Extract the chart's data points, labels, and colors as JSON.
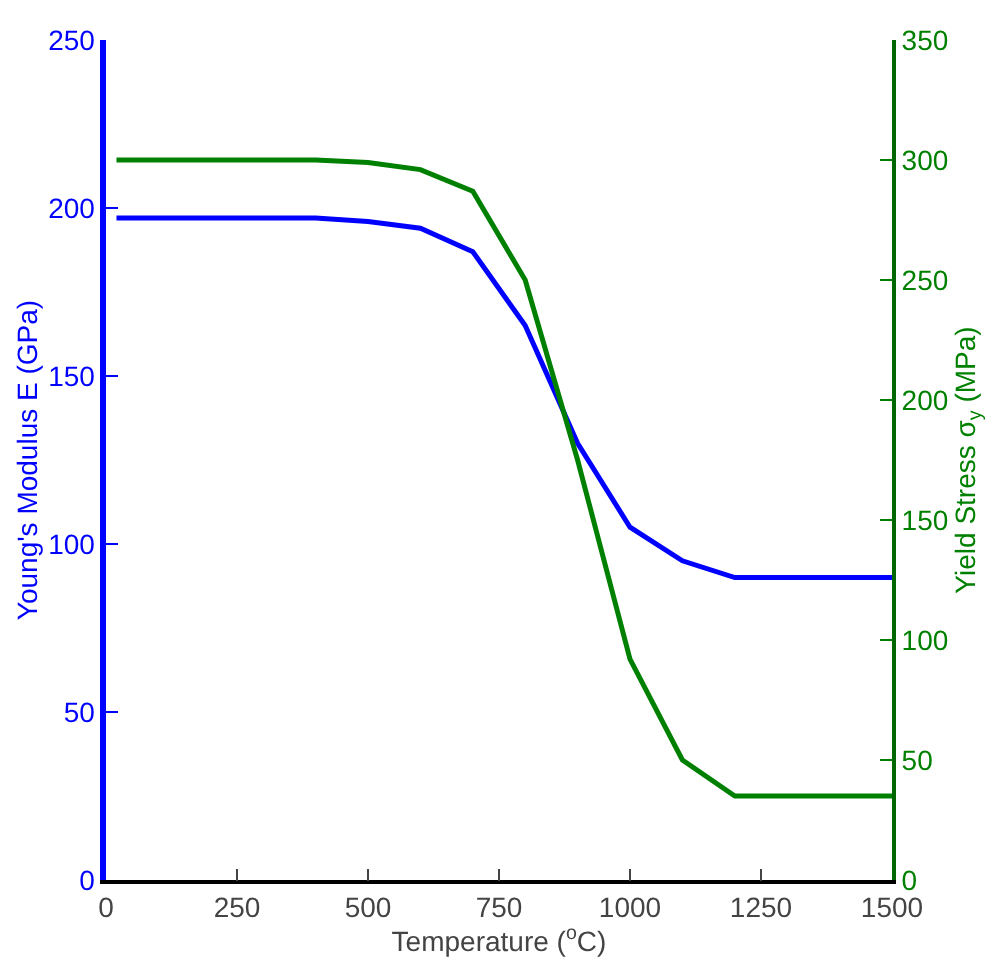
{
  "chart_data": {
    "type": "line",
    "xlabel": "Temperature ($^{o}$C)",
    "ylabel": "Young's Modulus E (GPa)",
    "y2label": "Yield Stress σ$_{y}$ (MPa)",
    "xlim": [
      0,
      1500
    ],
    "xticks": [
      0,
      250,
      500,
      750,
      1000,
      1250,
      1500
    ],
    "ylim": [
      0,
      250
    ],
    "yticks": [
      0,
      50,
      100,
      150,
      200,
      250
    ],
    "y2lim": [
      0,
      350
    ],
    "y2ticks": [
      0,
      50,
      100,
      150,
      200,
      250,
      300,
      350
    ],
    "marker": "none",
    "line_style": "solid",
    "series": [
      {
        "color": "#0000ff",
        "x": [
          20,
          400,
          500,
          600,
          700,
          800,
          900,
          1000,
          1100,
          1200,
          1500
        ],
        "values": [
          197,
          197,
          196,
          194,
          187,
          165,
          130,
          105,
          95,
          90,
          90
        ]
      },
      {
        "color": "#008000",
        "axis": "y2",
        "x": [
          20,
          400,
          500,
          600,
          700,
          800,
          900,
          1000,
          1100,
          1200,
          1500
        ],
        "values": [
          300,
          300,
          299,
          296,
          287,
          250,
          175,
          92,
          50,
          35,
          35
        ]
      }
    ]
  }
}
